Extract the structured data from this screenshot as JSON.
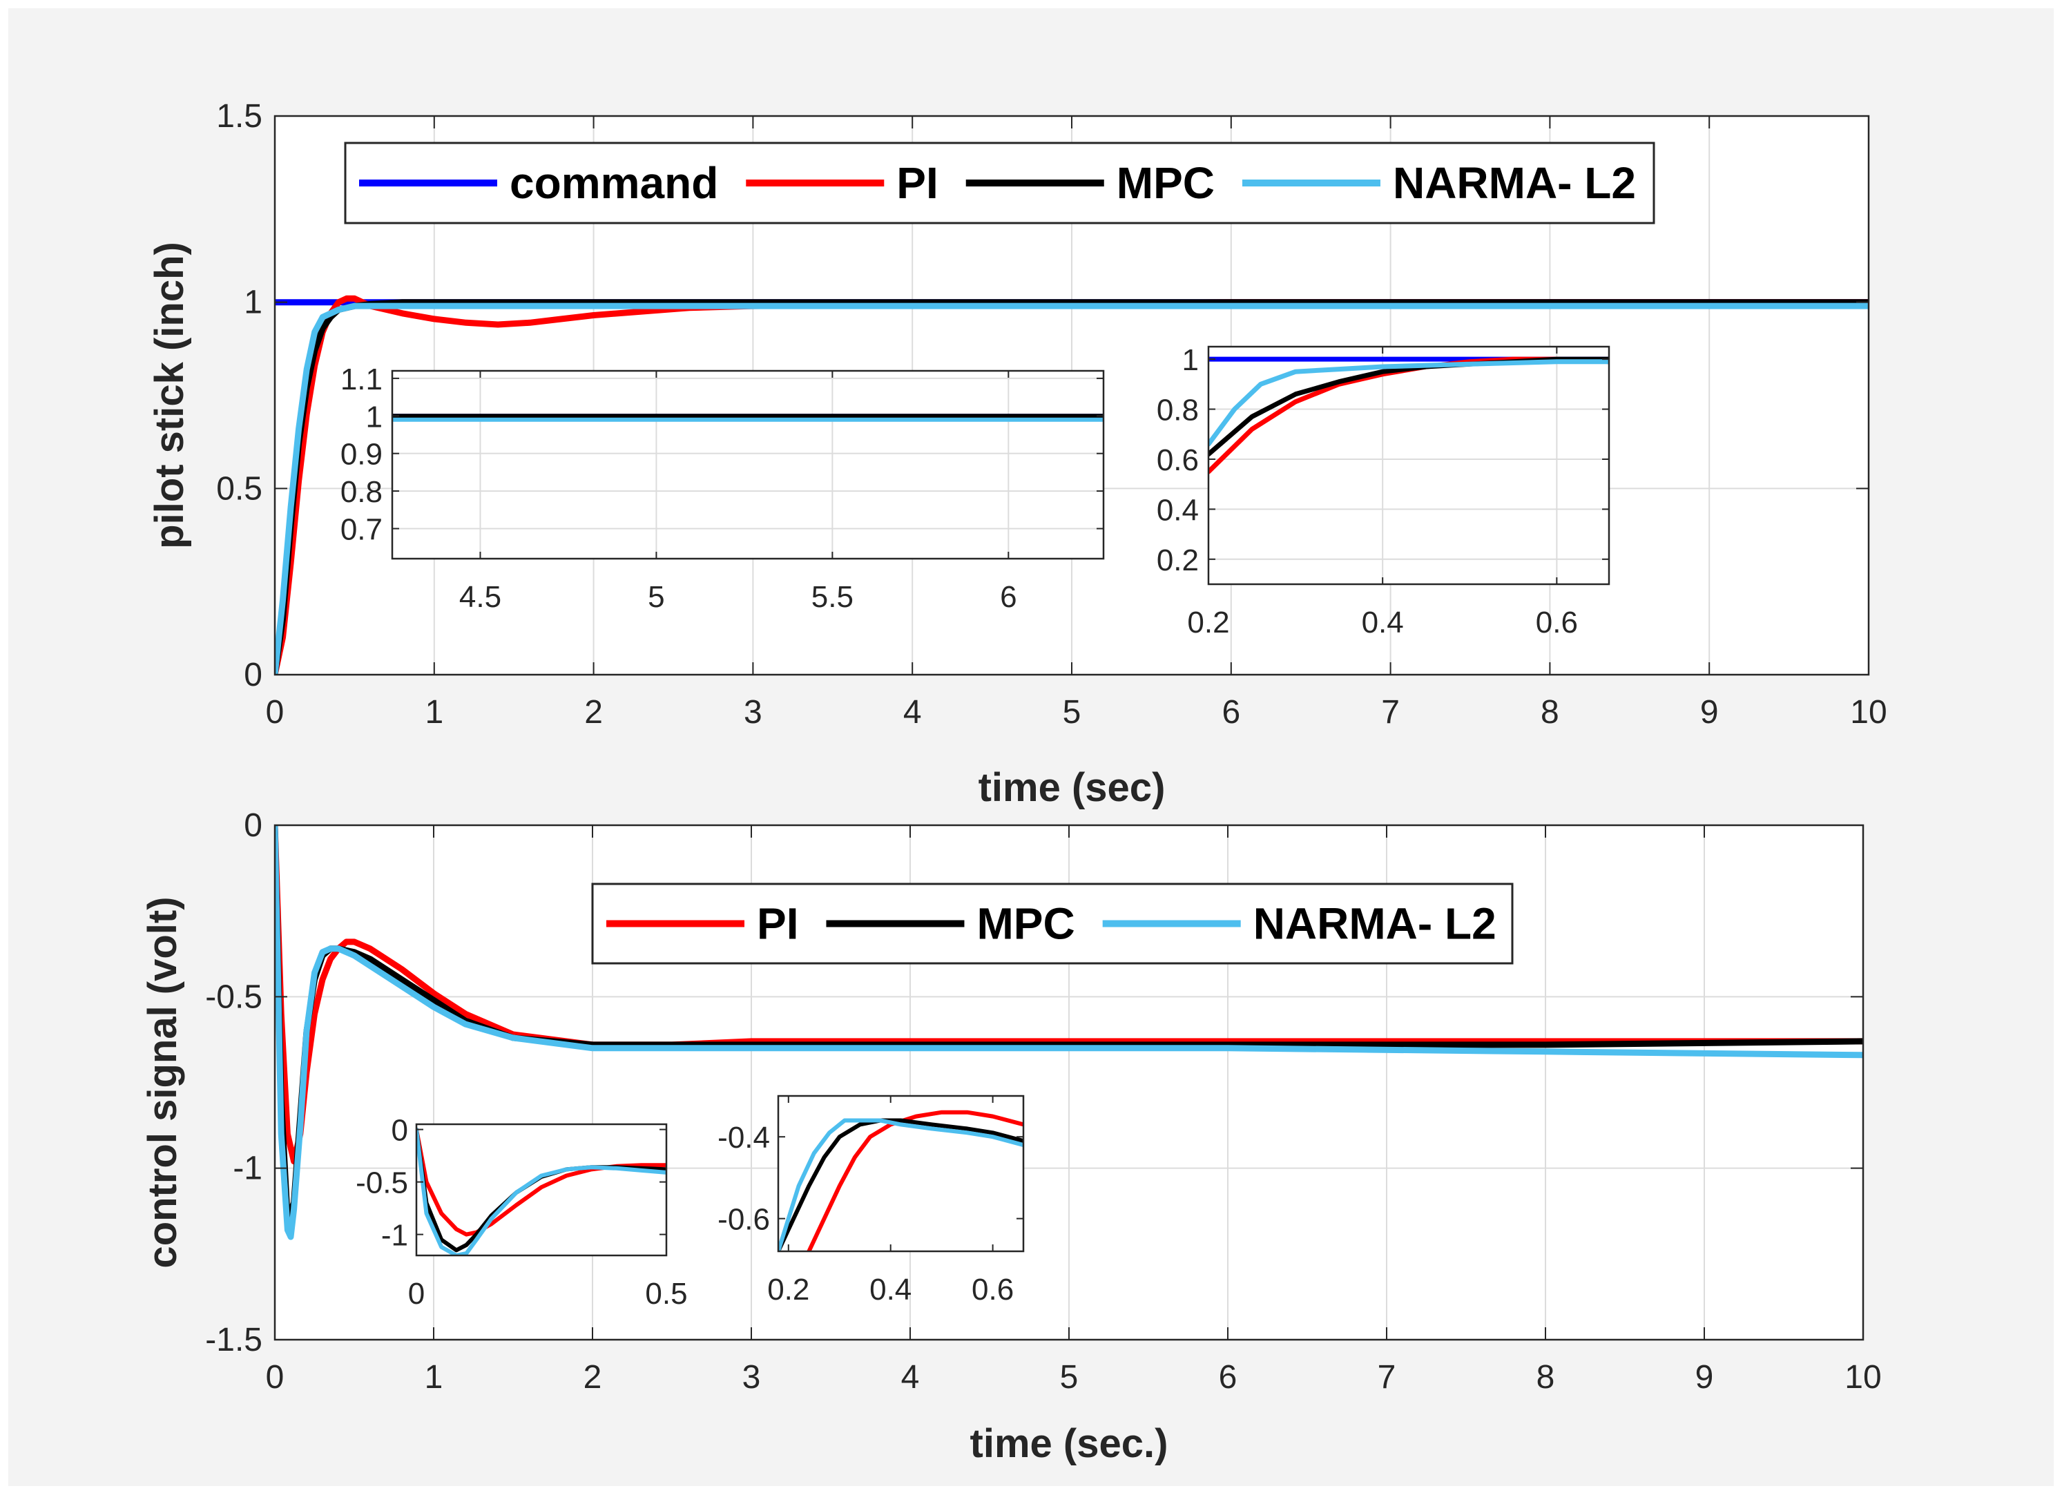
{
  "colors": {
    "command": "#0000ff",
    "pi": "#ff0000",
    "mpc": "#000000",
    "narma": "#4dbeee"
  },
  "chart_data": [
    {
      "id": "top",
      "type": "line",
      "xlabel": "time (sec)",
      "ylabel": "pilot stick (inch)",
      "xlim": [
        0,
        10
      ],
      "ylim": [
        0,
        1.5
      ],
      "xticks": [
        0,
        1,
        2,
        3,
        4,
        5,
        6,
        7,
        8,
        9,
        10
      ],
      "yticks": [
        0,
        0.5,
        1,
        1.5
      ],
      "ytick_labels": [
        "0",
        "0.5",
        "1",
        "1.5"
      ],
      "grid": true,
      "legend": {
        "position": "top",
        "entries": [
          "command",
          "PI",
          "MPC",
          "NARMA- L2"
        ]
      },
      "series": [
        {
          "name": "command",
          "color_key": "command",
          "x": [
            0,
            0.3,
            10
          ],
          "y": [
            1,
            1,
            1
          ]
        },
        {
          "name": "PI",
          "color_key": "pi",
          "x": [
            0,
            0.05,
            0.1,
            0.15,
            0.2,
            0.25,
            0.3,
            0.35,
            0.4,
            0.45,
            0.5,
            0.6,
            0.8,
            1.0,
            1.2,
            1.4,
            1.6,
            1.8,
            2.0,
            2.3,
            2.6,
            3.0,
            4,
            6,
            8,
            10
          ],
          "y": [
            0,
            0.1,
            0.3,
            0.52,
            0.7,
            0.83,
            0.92,
            0.97,
            1.0,
            1.01,
            1.01,
            0.99,
            0.97,
            0.955,
            0.945,
            0.94,
            0.945,
            0.955,
            0.965,
            0.975,
            0.985,
            0.99,
            0.995,
            1.0,
            1.0,
            1.0
          ]
        },
        {
          "name": "MPC",
          "color_key": "mpc",
          "x": [
            0,
            0.05,
            0.1,
            0.15,
            0.2,
            0.25,
            0.3,
            0.35,
            0.4,
            0.5,
            0.6,
            0.8,
            1.0,
            2,
            4,
            6,
            8,
            10
          ],
          "y": [
            0,
            0.15,
            0.4,
            0.62,
            0.77,
            0.87,
            0.93,
            0.96,
            0.98,
            0.99,
            0.995,
            1.0,
            1.0,
            1.0,
            1.0,
            1.0,
            1.0,
            1.0
          ]
        },
        {
          "name": "NARMA- L2",
          "color_key": "narma",
          "x": [
            0,
            0.05,
            0.1,
            0.15,
            0.2,
            0.25,
            0.3,
            0.35,
            0.4,
            0.5,
            0.6,
            0.8,
            1.0,
            2,
            4,
            6,
            8,
            10
          ],
          "y": [
            0,
            0.2,
            0.45,
            0.66,
            0.82,
            0.92,
            0.96,
            0.97,
            0.98,
            0.99,
            0.99,
            0.99,
            0.99,
            0.99,
            0.99,
            0.99,
            0.99,
            0.99
          ]
        }
      ]
    },
    {
      "id": "top_inset_1",
      "type": "line",
      "xlim": [
        4.25,
        6.27
      ],
      "ylim": [
        0.62,
        1.12
      ],
      "xticks": [
        4.5,
        5,
        5.5,
        6
      ],
      "xtick_labels": [
        "4.5",
        "5",
        "5.5",
        "6"
      ],
      "yticks": [
        0.7,
        0.8,
        0.9,
        1,
        1.1
      ],
      "ytick_labels": [
        "0.7",
        "0.8",
        "0.9",
        "1",
        "1.1"
      ],
      "grid": true,
      "series": [
        {
          "name": "command",
          "color_key": "command",
          "x": [
            4.25,
            6.27
          ],
          "y": [
            1,
            1
          ]
        },
        {
          "name": "MPC",
          "color_key": "mpc",
          "x": [
            4.25,
            6.27
          ],
          "y": [
            1,
            1
          ]
        },
        {
          "name": "NARMA- L2",
          "color_key": "narma",
          "x": [
            4.25,
            6.27
          ],
          "y": [
            0.99,
            0.99
          ]
        }
      ]
    },
    {
      "id": "top_inset_2",
      "type": "line",
      "xlim": [
        0.2,
        0.66
      ],
      "ylim": [
        0.1,
        1.05
      ],
      "xticks": [
        0.2,
        0.4,
        0.6
      ],
      "xtick_labels": [
        "0.2",
        "0.4",
        "0.6"
      ],
      "yticks": [
        0.2,
        0.4,
        0.6,
        0.8,
        1
      ],
      "ytick_labels": [
        "0.2",
        "0.4",
        "0.6",
        "0.8",
        "1"
      ],
      "grid": true,
      "series": [
        {
          "name": "command",
          "color_key": "command",
          "x": [
            0.2,
            0.66
          ],
          "y": [
            1,
            1
          ]
        },
        {
          "name": "PI",
          "color_key": "pi",
          "x": [
            0.2,
            0.25,
            0.3,
            0.35,
            0.4,
            0.45,
            0.5,
            0.55,
            0.6,
            0.66
          ],
          "y": [
            0.55,
            0.72,
            0.83,
            0.9,
            0.94,
            0.97,
            0.99,
            1.0,
            1.0,
            0.99
          ]
        },
        {
          "name": "MPC",
          "color_key": "mpc",
          "x": [
            0.2,
            0.25,
            0.3,
            0.35,
            0.4,
            0.45,
            0.5,
            0.55,
            0.6,
            0.66
          ],
          "y": [
            0.62,
            0.77,
            0.86,
            0.91,
            0.95,
            0.97,
            0.98,
            0.99,
            1.0,
            1.0
          ]
        },
        {
          "name": "NARMA- L2",
          "color_key": "narma",
          "x": [
            0.2,
            0.23,
            0.26,
            0.3,
            0.35,
            0.4,
            0.5,
            0.6,
            0.66
          ],
          "y": [
            0.66,
            0.8,
            0.9,
            0.95,
            0.96,
            0.97,
            0.98,
            0.99,
            0.99
          ]
        }
      ]
    },
    {
      "id": "bottom",
      "type": "line",
      "xlabel": "time (sec.)",
      "ylabel": "control signal (volt)",
      "xlim": [
        0,
        10
      ],
      "ylim": [
        -1.5,
        0
      ],
      "xticks": [
        0,
        1,
        2,
        3,
        4,
        5,
        6,
        7,
        8,
        9,
        10
      ],
      "yticks": [
        -1.5,
        -1,
        -0.5,
        0
      ],
      "ytick_labels": [
        "-1.5",
        "-1",
        "-0.5",
        "0"
      ],
      "grid": true,
      "legend": {
        "position": "top",
        "entries": [
          "PI",
          "MPC",
          "NARMA- L2"
        ]
      },
      "series": [
        {
          "name": "PI",
          "color_key": "pi",
          "x": [
            0,
            0.04,
            0.08,
            0.12,
            0.16,
            0.2,
            0.25,
            0.3,
            0.35,
            0.4,
            0.45,
            0.5,
            0.6,
            0.8,
            1.0,
            1.2,
            1.5,
            2.0,
            2.5,
            3,
            4,
            6,
            8,
            10
          ],
          "y": [
            0,
            -0.55,
            -0.9,
            -0.98,
            -0.9,
            -0.72,
            -0.55,
            -0.45,
            -0.39,
            -0.36,
            -0.34,
            -0.34,
            -0.36,
            -0.42,
            -0.49,
            -0.55,
            -0.61,
            -0.64,
            -0.64,
            -0.63,
            -0.63,
            -0.63,
            -0.63,
            -0.63
          ]
        },
        {
          "name": "MPC",
          "color_key": "mpc",
          "x": [
            0,
            0.04,
            0.08,
            0.12,
            0.16,
            0.2,
            0.25,
            0.3,
            0.35,
            0.4,
            0.5,
            0.6,
            0.8,
            1.0,
            1.2,
            1.5,
            2.0,
            2.5,
            3,
            4,
            6,
            8,
            10
          ],
          "y": [
            0,
            -0.8,
            -1.15,
            -1.1,
            -0.85,
            -0.6,
            -0.45,
            -0.38,
            -0.36,
            -0.36,
            -0.37,
            -0.39,
            -0.45,
            -0.51,
            -0.57,
            -0.62,
            -0.64,
            -0.64,
            -0.64,
            -0.64,
            -0.64,
            -0.64,
            -0.63
          ]
        },
        {
          "name": "NARMA- L2",
          "color_key": "narma",
          "x": [
            0,
            0.04,
            0.08,
            0.1,
            0.12,
            0.16,
            0.2,
            0.25,
            0.3,
            0.35,
            0.4,
            0.5,
            0.6,
            0.8,
            1.0,
            1.2,
            1.5,
            2.0,
            2.5,
            3,
            4,
            6,
            8,
            10
          ],
          "y": [
            0,
            -0.9,
            -1.18,
            -1.2,
            -1.12,
            -0.88,
            -0.6,
            -0.43,
            -0.37,
            -0.36,
            -0.36,
            -0.38,
            -0.41,
            -0.47,
            -0.53,
            -0.58,
            -0.62,
            -0.65,
            -0.65,
            -0.65,
            -0.65,
            -0.65,
            -0.66,
            -0.67
          ]
        }
      ]
    },
    {
      "id": "bottom_inset_1",
      "type": "line",
      "xlim": [
        0,
        0.5
      ],
      "ylim": [
        -1.2,
        0.05
      ],
      "xticks": [
        0,
        0.5
      ],
      "xtick_labels": [
        "0",
        "0.5"
      ],
      "yticks": [
        -1,
        -0.5,
        0
      ],
      "ytick_labels": [
        "-1",
        "-0.5",
        "0"
      ],
      "grid": false,
      "series": [
        {
          "name": "PI",
          "color_key": "pi",
          "x": [
            0,
            0.02,
            0.05,
            0.08,
            0.1,
            0.12,
            0.15,
            0.2,
            0.25,
            0.3,
            0.35,
            0.4,
            0.45,
            0.5
          ],
          "y": [
            0,
            -0.5,
            -0.8,
            -0.95,
            -1.0,
            -0.98,
            -0.9,
            -0.72,
            -0.55,
            -0.44,
            -0.38,
            -0.35,
            -0.34,
            -0.34
          ]
        },
        {
          "name": "MPC",
          "color_key": "mpc",
          "x": [
            0,
            0.02,
            0.05,
            0.08,
            0.1,
            0.12,
            0.15,
            0.2,
            0.25,
            0.3,
            0.35,
            0.4,
            0.45,
            0.5
          ],
          "y": [
            0,
            -0.7,
            -1.05,
            -1.15,
            -1.1,
            -1.0,
            -0.82,
            -0.6,
            -0.45,
            -0.38,
            -0.36,
            -0.36,
            -0.37,
            -0.38
          ]
        },
        {
          "name": "NARMA- L2",
          "color_key": "narma",
          "x": [
            0,
            0.02,
            0.05,
            0.08,
            0.1,
            0.12,
            0.15,
            0.2,
            0.25,
            0.3,
            0.35,
            0.4,
            0.45,
            0.5
          ],
          "y": [
            0,
            -0.8,
            -1.12,
            -1.2,
            -1.18,
            -1.05,
            -0.85,
            -0.6,
            -0.44,
            -0.38,
            -0.36,
            -0.37,
            -0.39,
            -0.41
          ]
        }
      ]
    },
    {
      "id": "bottom_inset_2",
      "type": "line",
      "xlim": [
        0.18,
        0.66
      ],
      "ylim": [
        -0.68,
        -0.3
      ],
      "xticks": [
        0.2,
        0.4,
        0.6
      ],
      "xtick_labels": [
        "0.2",
        "0.4",
        "0.6"
      ],
      "yticks": [
        -0.6,
        -0.4
      ],
      "ytick_labels": [
        "-0.6",
        "-0.4"
      ],
      "grid": false,
      "series": [
        {
          "name": "PI",
          "color_key": "pi",
          "x": [
            0.24,
            0.27,
            0.3,
            0.33,
            0.36,
            0.4,
            0.45,
            0.5,
            0.55,
            0.6,
            0.66
          ],
          "y": [
            -0.68,
            -0.6,
            -0.52,
            -0.45,
            -0.4,
            -0.37,
            -0.35,
            -0.34,
            -0.34,
            -0.35,
            -0.37
          ]
        },
        {
          "name": "MPC",
          "color_key": "mpc",
          "x": [
            0.18,
            0.21,
            0.24,
            0.27,
            0.3,
            0.34,
            0.38,
            0.42,
            0.48,
            0.55,
            0.6,
            0.66
          ],
          "y": [
            -0.68,
            -0.6,
            -0.52,
            -0.45,
            -0.4,
            -0.37,
            -0.36,
            -0.36,
            -0.37,
            -0.38,
            -0.39,
            -0.41
          ]
        },
        {
          "name": "NARMA- L2",
          "color_key": "narma",
          "x": [
            0.18,
            0.2,
            0.22,
            0.25,
            0.28,
            0.31,
            0.34,
            0.38,
            0.42,
            0.48,
            0.55,
            0.6,
            0.66
          ],
          "y": [
            -0.68,
            -0.6,
            -0.52,
            -0.44,
            -0.39,
            -0.36,
            -0.36,
            -0.36,
            -0.37,
            -0.38,
            -0.39,
            -0.4,
            -0.42
          ]
        }
      ]
    }
  ]
}
